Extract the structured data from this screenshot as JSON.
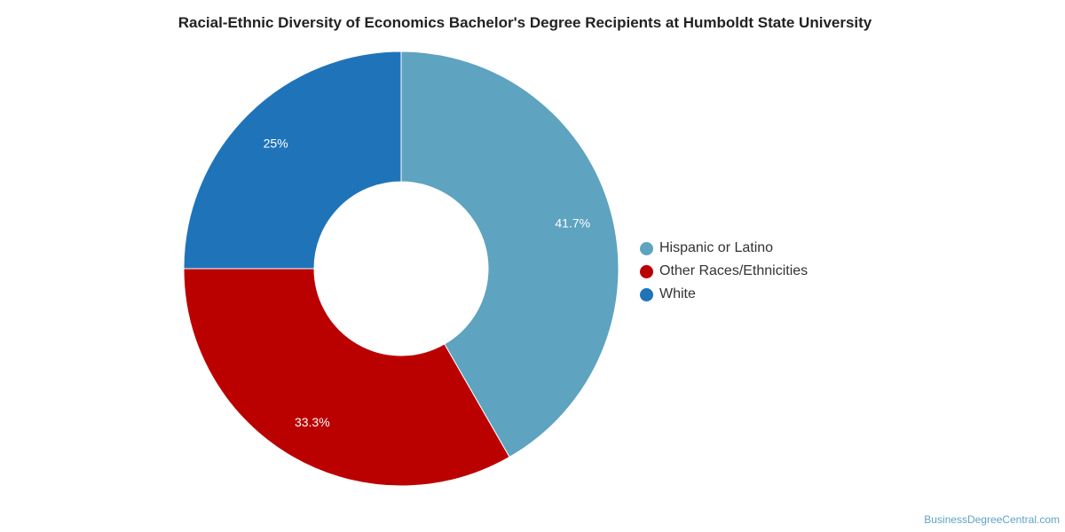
{
  "chart_data": {
    "type": "pie",
    "variant": "donut",
    "title": "Racial-Ethnic Diversity of Economics Bachelor's Degree Recipients at Humboldt State University",
    "unit": "%",
    "slices": [
      {
        "label": "Hispanic or Latino",
        "value": 41.7,
        "display": "41.7%",
        "color": "#5ea3c0"
      },
      {
        "label": "Other Races/Ethnicities",
        "value": 33.3,
        "display": "33.3%",
        "color": "#bb0000"
      },
      {
        "label": "White",
        "value": 25,
        "display": "25%",
        "color": "#1f74b9"
      }
    ],
    "legend_position": "right"
  },
  "source": "BusinessDegreeCentral.com"
}
